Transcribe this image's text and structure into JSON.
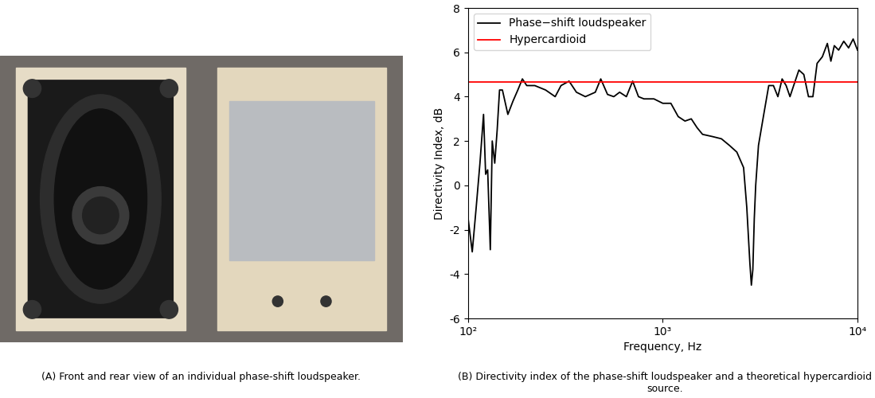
{
  "chart_data": {
    "type": "line",
    "x_label": "Frequency, Hz",
    "y_label": "Directivity Index, dB",
    "log": "x",
    "legend": "upper left",
    "grid": false,
    "xlim": [
      100,
      10000
    ],
    "xticks": [
      {
        "value": 100,
        "label": "10²"
      },
      {
        "value": 1000,
        "label": "10³"
      },
      {
        "value": 10000,
        "label": "10⁴"
      }
    ],
    "ylim": [
      -6,
      8
    ],
    "yticks": [
      -6,
      -4,
      -2,
      0,
      2,
      4,
      6,
      8
    ],
    "series": [
      {
        "name": "Phase−shift loudspeaker",
        "color": "#000000",
        "x": [
          100,
          105,
          110,
          115,
          120,
          123,
          126,
          130,
          133,
          137,
          141,
          145,
          150,
          160,
          170,
          180,
          190,
          200,
          220,
          250,
          280,
          300,
          330,
          360,
          400,
          450,
          480,
          520,
          560,
          600,
          650,
          700,
          750,
          800,
          900,
          1000,
          1100,
          1200,
          1300,
          1400,
          1500,
          1600,
          1800,
          2000,
          2200,
          2400,
          2600,
          2700,
          2800,
          2850,
          2900,
          2950,
          3000,
          3100,
          3300,
          3500,
          3700,
          3900,
          4100,
          4300,
          4500,
          4700,
          5000,
          5300,
          5600,
          5900,
          6200,
          6600,
          7000,
          7300,
          7600,
          8000,
          8500,
          9000,
          9500,
          10000
        ],
        "values": [
          -1.5,
          -3.0,
          -1.0,
          1.0,
          3.2,
          0.5,
          0.7,
          -2.9,
          2.0,
          1.0,
          2.5,
          4.3,
          4.3,
          3.2,
          3.8,
          4.3,
          4.8,
          4.5,
          4.5,
          4.3,
          4.0,
          4.5,
          4.7,
          4.2,
          4.0,
          4.2,
          4.8,
          4.1,
          4.0,
          4.2,
          4.0,
          4.7,
          4.0,
          3.9,
          3.9,
          3.7,
          3.7,
          3.1,
          2.9,
          3.0,
          2.6,
          2.3,
          2.2,
          2.1,
          1.8,
          1.5,
          0.8,
          -1.0,
          -3.5,
          -4.5,
          -3.8,
          -1.5,
          0.0,
          1.8,
          3.2,
          4.5,
          4.5,
          4.0,
          4.8,
          4.5,
          4.0,
          4.5,
          5.2,
          5.0,
          4.0,
          4.0,
          5.5,
          5.8,
          6.4,
          5.6,
          6.3,
          6.1,
          6.5,
          6.2,
          6.6,
          6.1
        ]
      },
      {
        "name": "Hypercardioid",
        "color": "#ff0000",
        "x": [
          100,
          10000
        ],
        "values": [
          4.65,
          4.65
        ]
      }
    ]
  },
  "captions": {
    "photo": "(A) Front and rear view of an individual phase-shift loudspeaker.",
    "chart": "(B) Directivity index of the phase-shift loudspeaker and a theoretical hypercardioid source."
  }
}
